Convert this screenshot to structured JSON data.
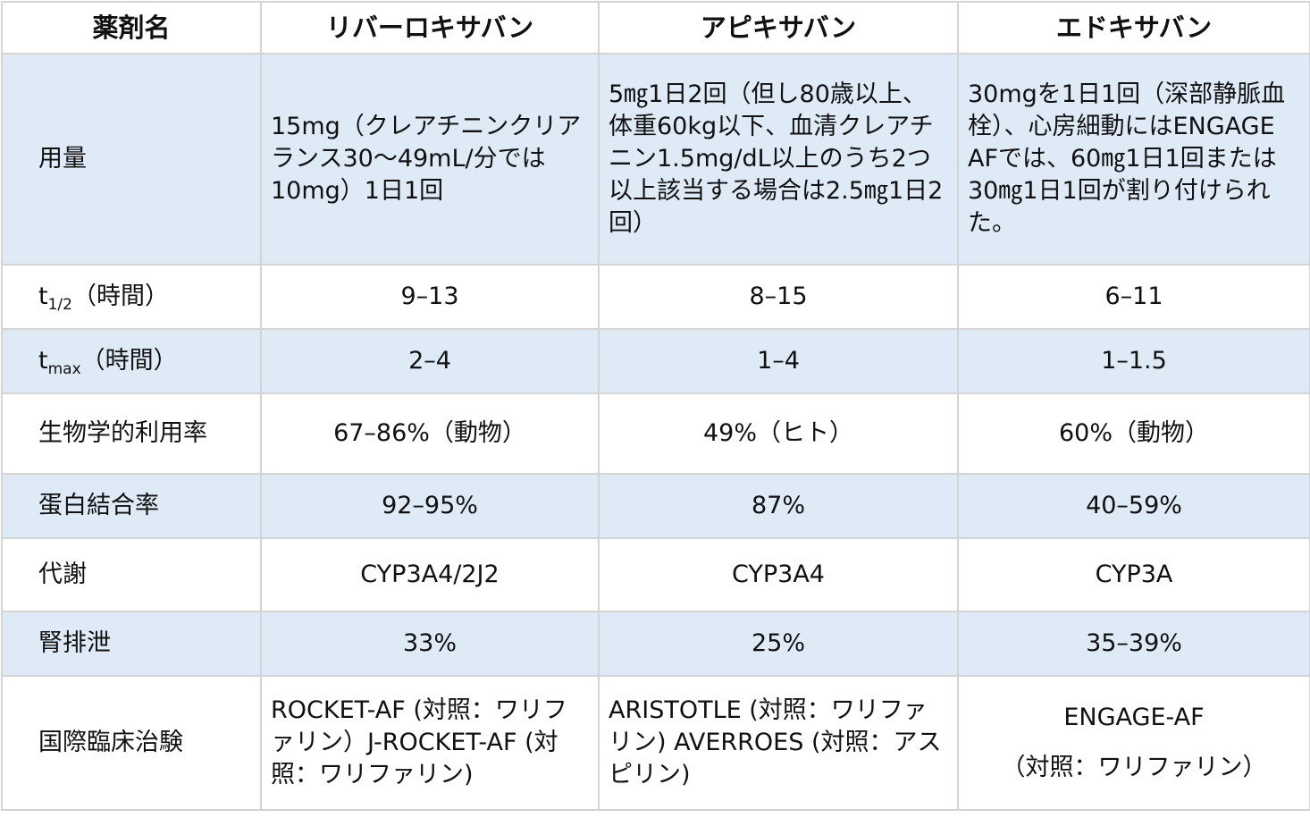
{
  "header": {
    "col_label": "薬剤名",
    "drugs": [
      "リバーロキサバン",
      "アピキサバン",
      "エドキサバン"
    ]
  },
  "rows": {
    "dose": {
      "label": "用量",
      "values": [
        "15mg（クレアチニンクリアランス30～49mL/分では10mg）1日1回",
        "5㎎1日2回（但し80歳以上、体重60kg以下、血清クレアチニン1.5mg/dL以上のうち2つ以上該当する場合は2.5㎎1日2回）",
        "30mgを1日1回（深部静脈血栓）、心房細動にはENGAGE AFでは、60㎎1日1回または30㎎1日1回が割り付けられた。"
      ]
    },
    "half_life": {
      "label_main": "t",
      "label_sub": "1/2",
      "label_suffix": "（時間）",
      "values": [
        "9–13",
        "8–15",
        "6–11"
      ]
    },
    "tmax": {
      "label_main": "t",
      "label_sub": "max",
      "label_suffix": "（時間）",
      "values": [
        "2–4",
        "1–4",
        "1–1.5"
      ]
    },
    "bioavailability": {
      "label": "生物学的利用率",
      "values": [
        "67–86%（動物）",
        "49%（ヒト）",
        "60%（動物）"
      ]
    },
    "protein_binding": {
      "label": "蛋白結合率",
      "values": [
        "92–95%",
        "87%",
        "40–59%"
      ]
    },
    "metabolism": {
      "label": "代謝",
      "values": [
        "CYP3A4/2J2",
        "CYP3A4",
        "CYP3A"
      ]
    },
    "renal_excretion": {
      "label": "腎排泄",
      "values": [
        "33%",
        "25%",
        "35–39%"
      ]
    },
    "trials": {
      "label": "国際臨床治験",
      "rivaroxaban": "ROCKET-AF (対照：ワリファリン）J-ROCKET-AF (対照：ワリファリン)",
      "apixaban": "ARISTOTLE (対照：ワリファリン) AVERROES (対照：アスピリン)",
      "edoxaban_name": "ENGAGE-AF",
      "edoxaban_note": "（対照：ワリファリン）"
    }
  },
  "colors": {
    "header_bg": "#ffffff",
    "shade_bg": "#deebf7",
    "border": "#d4d4d4",
    "text": "#111111"
  }
}
